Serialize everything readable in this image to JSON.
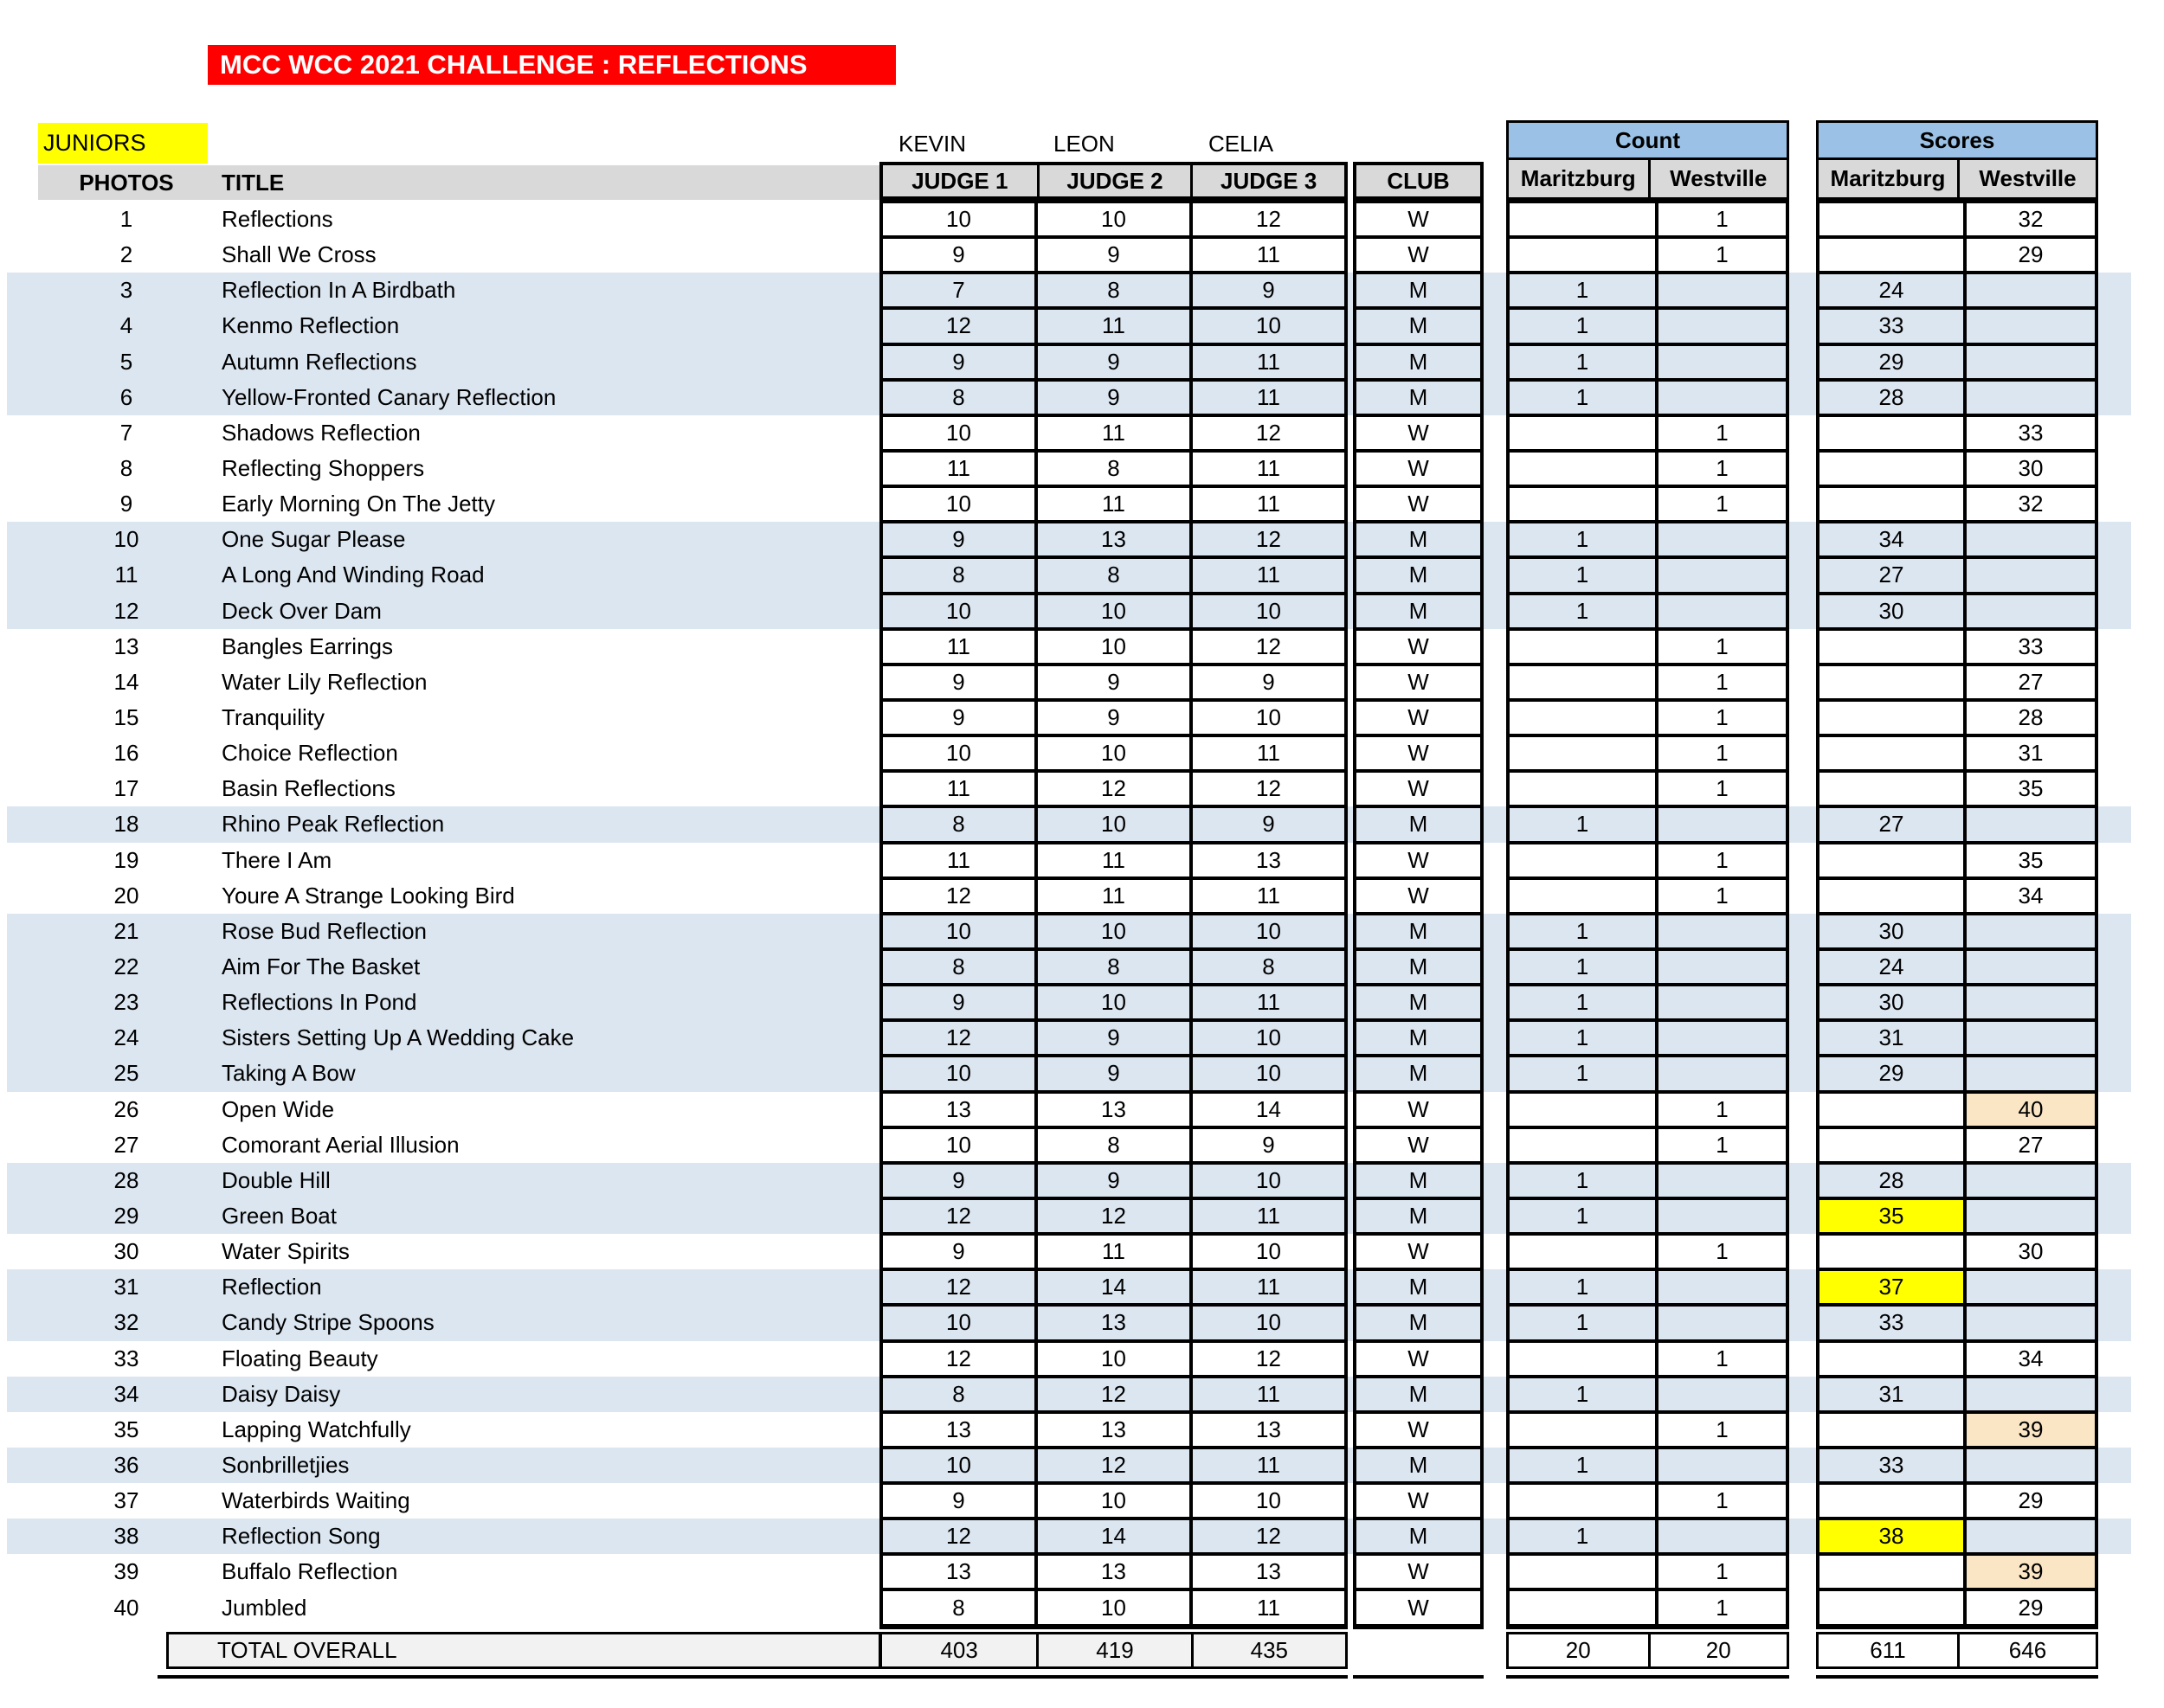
{
  "banner": {
    "title": "MCC WCC 2021 CHALLENGE : REFLECTIONS"
  },
  "section_label": "JUNIORS",
  "judges_names": [
    "KEVIN",
    "LEON",
    "CELIA"
  ],
  "columns": {
    "photos": "PHOTOS",
    "title": "TITLE",
    "judges": [
      "JUDGE 1",
      "JUDGE 2",
      "JUDGE 3"
    ],
    "club": "CLUB",
    "count_group": "Count",
    "scores_group": "Scores",
    "club_names": [
      "Maritzburg",
      "Westville"
    ]
  },
  "colors": {
    "banner_bg": "#FF0000",
    "section_bg": "#FFFF00",
    "header_gray": "#D9D9D9",
    "group_header_blue": "#9BC2E6",
    "row_blue": "#DCE6F1",
    "total_gray": "#F2F2F2",
    "highlight_yellow": "#FFFF00",
    "highlight_orange": "#FAE6C5"
  },
  "rows": [
    {
      "n": 1,
      "t": "Reflections",
      "j1": 10,
      "j2": 10,
      "j3": 12,
      "club": "W",
      "cm": "",
      "cw": "1",
      "sm": "",
      "sw": "32"
    },
    {
      "n": 2,
      "t": "Shall We Cross",
      "j1": 9,
      "j2": 9,
      "j3": 11,
      "club": "W",
      "cm": "",
      "cw": "1",
      "sm": "",
      "sw": "29"
    },
    {
      "n": 3,
      "t": "Reflection In A Birdbath",
      "j1": 7,
      "j2": 8,
      "j3": 9,
      "club": "M",
      "cm": "1",
      "cw": "",
      "sm": "24",
      "sw": ""
    },
    {
      "n": 4,
      "t": "Kenmo Reflection",
      "j1": 12,
      "j2": 11,
      "j3": 10,
      "club": "M",
      "cm": "1",
      "cw": "",
      "sm": "33",
      "sw": ""
    },
    {
      "n": 5,
      "t": "Autumn Reflections",
      "j1": 9,
      "j2": 9,
      "j3": 11,
      "club": "M",
      "cm": "1",
      "cw": "",
      "sm": "29",
      "sw": ""
    },
    {
      "n": 6,
      "t": "Yellow-Fronted Canary Reflection",
      "j1": 8,
      "j2": 9,
      "j3": 11,
      "club": "M",
      "cm": "1",
      "cw": "",
      "sm": "28",
      "sw": ""
    },
    {
      "n": 7,
      "t": "Shadows Reflection",
      "j1": 10,
      "j2": 11,
      "j3": 12,
      "club": "W",
      "cm": "",
      "cw": "1",
      "sm": "",
      "sw": "33"
    },
    {
      "n": 8,
      "t": "Reflecting Shoppers",
      "j1": 11,
      "j2": 8,
      "j3": 11,
      "club": "W",
      "cm": "",
      "cw": "1",
      "sm": "",
      "sw": "30"
    },
    {
      "n": 9,
      "t": "Early Morning On The Jetty",
      "j1": 10,
      "j2": 11,
      "j3": 11,
      "club": "W",
      "cm": "",
      "cw": "1",
      "sm": "",
      "sw": "32"
    },
    {
      "n": 10,
      "t": "One Sugar Please",
      "j1": 9,
      "j2": 13,
      "j3": 12,
      "club": "M",
      "cm": "1",
      "cw": "",
      "sm": "34",
      "sw": ""
    },
    {
      "n": 11,
      "t": "A Long And Winding Road",
      "j1": 8,
      "j2": 8,
      "j3": 11,
      "club": "M",
      "cm": "1",
      "cw": "",
      "sm": "27",
      "sw": ""
    },
    {
      "n": 12,
      "t": "Deck Over Dam",
      "j1": 10,
      "j2": 10,
      "j3": 10,
      "club": "M",
      "cm": "1",
      "cw": "",
      "sm": "30",
      "sw": ""
    },
    {
      "n": 13,
      "t": "Bangles Earrings",
      "j1": 11,
      "j2": 10,
      "j3": 12,
      "club": "W",
      "cm": "",
      "cw": "1",
      "sm": "",
      "sw": "33"
    },
    {
      "n": 14,
      "t": "Water Lily Reflection",
      "j1": 9,
      "j2": 9,
      "j3": 9,
      "club": "W",
      "cm": "",
      "cw": "1",
      "sm": "",
      "sw": "27"
    },
    {
      "n": 15,
      "t": "Tranquility",
      "j1": 9,
      "j2": 9,
      "j3": 10,
      "club": "W",
      "cm": "",
      "cw": "1",
      "sm": "",
      "sw": "28"
    },
    {
      "n": 16,
      "t": "Choice Reflection",
      "j1": 10,
      "j2": 10,
      "j3": 11,
      "club": "W",
      "cm": "",
      "cw": "1",
      "sm": "",
      "sw": "31"
    },
    {
      "n": 17,
      "t": "Basin Reflections",
      "j1": 11,
      "j2": 12,
      "j3": 12,
      "club": "W",
      "cm": "",
      "cw": "1",
      "sm": "",
      "sw": "35"
    },
    {
      "n": 18,
      "t": "Rhino Peak Reflection",
      "j1": 8,
      "j2": 10,
      "j3": 9,
      "club": "M",
      "cm": "1",
      "cw": "",
      "sm": "27",
      "sw": ""
    },
    {
      "n": 19,
      "t": "There I Am",
      "j1": 11,
      "j2": 11,
      "j3": 13,
      "club": "W",
      "cm": "",
      "cw": "1",
      "sm": "",
      "sw": "35"
    },
    {
      "n": 20,
      "t": "Youre A Strange Looking Bird",
      "j1": 12,
      "j2": 11,
      "j3": 11,
      "club": "W",
      "cm": "",
      "cw": "1",
      "sm": "",
      "sw": "34"
    },
    {
      "n": 21,
      "t": "Rose Bud Reflection",
      "j1": 10,
      "j2": 10,
      "j3": 10,
      "club": "M",
      "cm": "1",
      "cw": "",
      "sm": "30",
      "sw": ""
    },
    {
      "n": 22,
      "t": "Aim For The Basket",
      "j1": 8,
      "j2": 8,
      "j3": 8,
      "club": "M",
      "cm": "1",
      "cw": "",
      "sm": "24",
      "sw": ""
    },
    {
      "n": 23,
      "t": "Reflections In Pond",
      "j1": 9,
      "j2": 10,
      "j3": 11,
      "club": "M",
      "cm": "1",
      "cw": "",
      "sm": "30",
      "sw": ""
    },
    {
      "n": 24,
      "t": "Sisters Setting Up A Wedding Cake",
      "j1": 12,
      "j2": 9,
      "j3": 10,
      "club": "M",
      "cm": "1",
      "cw": "",
      "sm": "31",
      "sw": ""
    },
    {
      "n": 25,
      "t": "Taking A Bow",
      "j1": 10,
      "j2": 9,
      "j3": 10,
      "club": "M",
      "cm": "1",
      "cw": "",
      "sm": "29",
      "sw": ""
    },
    {
      "n": 26,
      "t": "Open Wide",
      "j1": 13,
      "j2": 13,
      "j3": 14,
      "club": "W",
      "cm": "",
      "cw": "1",
      "sm": "",
      "sw": "40",
      "sw_hl": "orange"
    },
    {
      "n": 27,
      "t": "Comorant Aerial Illusion",
      "j1": 10,
      "j2": 8,
      "j3": 9,
      "club": "W",
      "cm": "",
      "cw": "1",
      "sm": "",
      "sw": "27"
    },
    {
      "n": 28,
      "t": "Double Hill",
      "j1": 9,
      "j2": 9,
      "j3": 10,
      "club": "M",
      "cm": "1",
      "cw": "",
      "sm": "28",
      "sw": ""
    },
    {
      "n": 29,
      "t": "Green Boat",
      "j1": 12,
      "j2": 12,
      "j3": 11,
      "club": "M",
      "cm": "1",
      "cw": "",
      "sm": "35",
      "sw": "",
      "sm_hl": "yellow"
    },
    {
      "n": 30,
      "t": "Water Spirits",
      "j1": 9,
      "j2": 11,
      "j3": 10,
      "club": "W",
      "cm": "",
      "cw": "1",
      "sm": "",
      "sw": "30"
    },
    {
      "n": 31,
      "t": "Reflection",
      "j1": 12,
      "j2": 14,
      "j3": 11,
      "club": "M",
      "cm": "1",
      "cw": "",
      "sm": "37",
      "sw": "",
      "sm_hl": "yellow"
    },
    {
      "n": 32,
      "t": "Candy Stripe Spoons",
      "j1": 10,
      "j2": 13,
      "j3": 10,
      "club": "M",
      "cm": "1",
      "cw": "",
      "sm": "33",
      "sw": ""
    },
    {
      "n": 33,
      "t": "Floating Beauty",
      "j1": 12,
      "j2": 10,
      "j3": 12,
      "club": "W",
      "cm": "",
      "cw": "1",
      "sm": "",
      "sw": "34"
    },
    {
      "n": 34,
      "t": "Daisy Daisy",
      "j1": 8,
      "j2": 12,
      "j3": 11,
      "club": "M",
      "cm": "1",
      "cw": "",
      "sm": "31",
      "sw": ""
    },
    {
      "n": 35,
      "t": "Lapping Watchfully",
      "j1": 13,
      "j2": 13,
      "j3": 13,
      "club": "W",
      "cm": "",
      "cw": "1",
      "sm": "",
      "sw": "39",
      "sw_hl": "orange"
    },
    {
      "n": 36,
      "t": "Sonbrilletjies",
      "j1": 10,
      "j2": 12,
      "j3": 11,
      "club": "M",
      "cm": "1",
      "cw": "",
      "sm": "33",
      "sw": ""
    },
    {
      "n": 37,
      "t": "Waterbirds Waiting",
      "j1": 9,
      "j2": 10,
      "j3": 10,
      "club": "W",
      "cm": "",
      "cw": "1",
      "sm": "",
      "sw": "29"
    },
    {
      "n": 38,
      "t": "Reflection Song",
      "j1": 12,
      "j2": 14,
      "j3": 12,
      "club": "M",
      "cm": "1",
      "cw": "",
      "sm": "38",
      "sw": "",
      "sm_hl": "yellow"
    },
    {
      "n": 39,
      "t": "Buffalo Reflection",
      "j1": 13,
      "j2": 13,
      "j3": 13,
      "club": "W",
      "cm": "",
      "cw": "1",
      "sm": "",
      "sw": "39",
      "sw_hl": "orange"
    },
    {
      "n": 40,
      "t": "Jumbled",
      "j1": 8,
      "j2": 10,
      "j3": 11,
      "club": "W",
      "cm": "",
      "cw": "1",
      "sm": "",
      "sw": "29"
    }
  ],
  "totals": {
    "label": "TOTAL OVERALL",
    "j1": "403",
    "j2": "419",
    "j3": "435",
    "count_m": "20",
    "count_w": "20",
    "score_m": "611",
    "score_w": "646"
  }
}
